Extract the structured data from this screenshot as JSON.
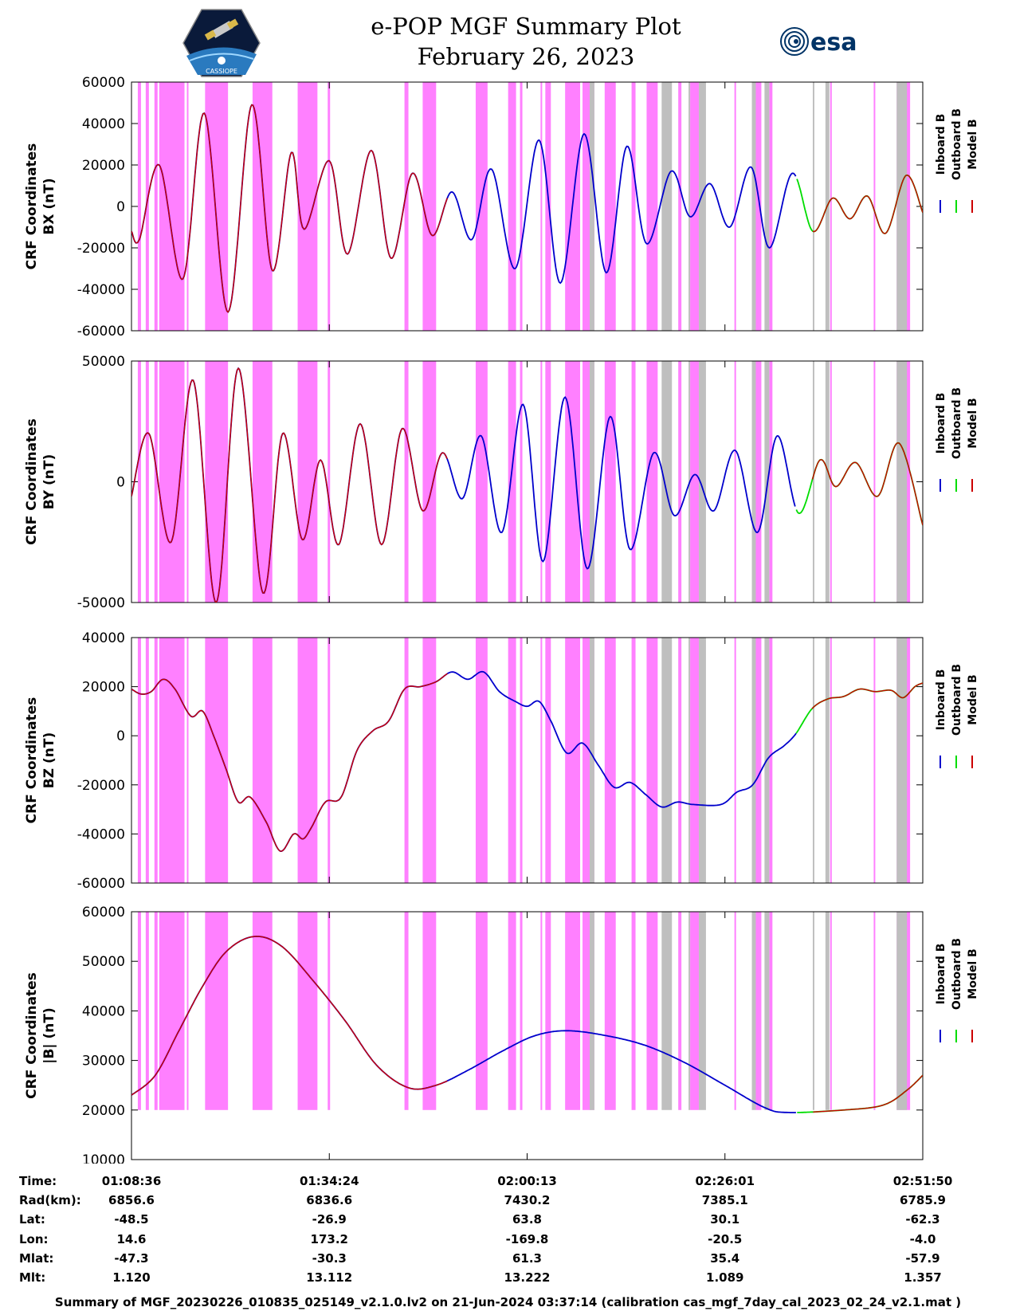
{
  "header": {
    "title_line1": "e-POP MGF Summary Plot",
    "title_line2": "February 26, 2023",
    "left_logo": "cassiope-mission-logo",
    "left_logo_text": "CASSIOPE",
    "right_logo": "esa-logo",
    "right_logo_text": "esa"
  },
  "colors": {
    "inboard": "#0000cc",
    "outboard": "#00dd00",
    "model": "#cc0000",
    "pink_band": "#ff80ff",
    "gray_band": "#bfbfbf"
  },
  "legend": {
    "inboard": "Inboard B",
    "outboard": "Outboard B",
    "model": "Model B"
  },
  "chart_data": {
    "type": "line",
    "x_ticks": [
      "01:08:36",
      "01:34:24",
      "02:00:13",
      "02:26:01",
      "02:51:50"
    ],
    "x_range": [
      0,
      100
    ],
    "inboard_end": 84,
    "model_segments": [
      [
        0,
        40
      ],
      [
        86,
        100
      ]
    ],
    "pink_bands": [
      [
        0.8,
        1.2
      ],
      [
        1.8,
        2.2
      ],
      [
        2.9,
        3.3
      ],
      [
        3.5,
        6.7
      ],
      [
        7.0,
        7.2
      ],
      [
        9.3,
        12.2
      ],
      [
        15.3,
        17.8
      ],
      [
        21.0,
        23.5
      ],
      [
        24.8,
        25.1
      ],
      [
        34.5,
        35.0
      ],
      [
        36.8,
        38.5
      ],
      [
        43.5,
        45.0
      ],
      [
        47.6,
        48.6
      ],
      [
        49.1,
        49.4
      ],
      [
        51.7,
        51.9
      ],
      [
        52.3,
        53.0
      ],
      [
        54.8,
        56.7
      ],
      [
        57.0,
        58.5
      ],
      [
        59.8,
        61.2
      ],
      [
        63.2,
        63.7
      ],
      [
        65.1,
        66.5
      ],
      [
        69.1,
        69.5
      ],
      [
        70.6,
        71.7
      ],
      [
        76.2,
        76.4
      ],
      [
        78.9,
        79.6
      ],
      [
        80.6,
        81.0
      ],
      [
        88.3,
        88.5
      ],
      [
        93.8,
        94.0
      ],
      [
        96.7,
        98.4
      ]
    ],
    "gray_bands": [
      [
        57.9,
        58.5
      ],
      [
        67.0,
        68.3
      ],
      [
        70.4,
        70.6
      ],
      [
        71.7,
        72.6
      ],
      [
        78.4,
        78.9
      ],
      [
        80.0,
        80.6
      ],
      [
        86.1,
        86.3
      ],
      [
        87.7,
        88.2
      ],
      [
        96.7,
        98.0
      ]
    ],
    "panels": [
      {
        "name": "bx",
        "ylabel_line1": "CRF Coordinates",
        "ylabel_line2": "BX (nT)",
        "ylim": [
          -60000,
          60000
        ],
        "yticks": [
          60000,
          40000,
          20000,
          0,
          -20000,
          -40000,
          -60000
        ],
        "points": [
          [
            0,
            -12000
          ],
          [
            1,
            -16000
          ],
          [
            3.5,
            20000
          ],
          [
            6.5,
            -35000
          ],
          [
            9.2,
            45000
          ],
          [
            12.2,
            -51000
          ],
          [
            15.2,
            49000
          ],
          [
            17.8,
            -31000
          ],
          [
            20.2,
            26000
          ],
          [
            21.8,
            -11000
          ],
          [
            25.0,
            22000
          ],
          [
            27.3,
            -23000
          ],
          [
            30.3,
            27000
          ],
          [
            32.8,
            -25000
          ],
          [
            35.5,
            16000
          ],
          [
            38.0,
            -14000
          ],
          [
            40.5,
            7000
          ],
          [
            43.0,
            -16000
          ],
          [
            45.5,
            18000
          ],
          [
            48.5,
            -30000
          ],
          [
            51.5,
            32000
          ],
          [
            54.2,
            -37000
          ],
          [
            57.2,
            35000
          ],
          [
            60.0,
            -32000
          ],
          [
            62.6,
            29000
          ],
          [
            65.1,
            -18000
          ],
          [
            68.2,
            17000
          ],
          [
            70.6,
            -5000
          ],
          [
            73.1,
            11000
          ],
          [
            75.6,
            -10000
          ],
          [
            78.3,
            19000
          ],
          [
            80.6,
            -20000
          ],
          [
            83.5,
            16000
          ],
          [
            86.1,
            -12000
          ],
          [
            88.6,
            4000
          ],
          [
            90.8,
            -6000
          ],
          [
            93.0,
            5000
          ],
          [
            95.3,
            -13000
          ],
          [
            97.9,
            15000
          ],
          [
            100,
            -3000
          ]
        ]
      },
      {
        "name": "by",
        "ylabel_line1": "CRF Coordinates",
        "ylabel_line2": "BY (nT)",
        "ylim": [
          -50000,
          50000
        ],
        "yticks": [
          50000,
          0,
          -50000
        ],
        "points": [
          [
            0,
            -6000
          ],
          [
            2.2,
            20000
          ],
          [
            5.0,
            -25000
          ],
          [
            7.8,
            42000
          ],
          [
            10.7,
            -50000
          ],
          [
            13.5,
            47000
          ],
          [
            16.6,
            -46000
          ],
          [
            19.1,
            20000
          ],
          [
            21.6,
            -24000
          ],
          [
            23.9,
            9000
          ],
          [
            26.2,
            -26000
          ],
          [
            28.9,
            24000
          ],
          [
            31.6,
            -26000
          ],
          [
            34.2,
            22000
          ],
          [
            36.8,
            -12000
          ],
          [
            39.3,
            12000
          ],
          [
            41.8,
            -7000
          ],
          [
            44.2,
            19000
          ],
          [
            46.8,
            -21000
          ],
          [
            49.5,
            32000
          ],
          [
            52.0,
            -33000
          ],
          [
            54.8,
            35000
          ],
          [
            57.6,
            -36000
          ],
          [
            60.5,
            27000
          ],
          [
            63.0,
            -28000
          ],
          [
            66.0,
            12000
          ],
          [
            68.6,
            -14000
          ],
          [
            71.2,
            3000
          ],
          [
            73.6,
            -12000
          ],
          [
            76.3,
            13000
          ],
          [
            79.1,
            -21000
          ],
          [
            81.6,
            19000
          ],
          [
            84.3,
            -13000
          ],
          [
            87.0,
            9000
          ],
          [
            89.0,
            -2000
          ],
          [
            91.5,
            8000
          ],
          [
            94.3,
            -6000
          ],
          [
            97.0,
            16000
          ],
          [
            100,
            -18000
          ]
        ]
      },
      {
        "name": "bz",
        "ylabel_line1": "CRF Coordinates",
        "ylabel_line2": "BZ (nT)",
        "ylim": [
          -60000,
          40000
        ],
        "yticks": [
          40000,
          20000,
          0,
          -20000,
          -40000,
          -60000
        ],
        "points": [
          [
            0,
            19000
          ],
          [
            1.2,
            17000
          ],
          [
            2.5,
            18000
          ],
          [
            4.0,
            23000
          ],
          [
            5.5,
            19000
          ],
          [
            7.5,
            8000
          ],
          [
            9.0,
            10000
          ],
          [
            10.5,
            -1000
          ],
          [
            12.0,
            -14000
          ],
          [
            13.5,
            -27000
          ],
          [
            15.0,
            -25000
          ],
          [
            17.0,
            -35000
          ],
          [
            18.8,
            -47000
          ],
          [
            20.5,
            -40000
          ],
          [
            21.7,
            -42000
          ],
          [
            22.8,
            -37000
          ],
          [
            24.5,
            -27000
          ],
          [
            26.5,
            -25000
          ],
          [
            28.5,
            -6000
          ],
          [
            30.5,
            2000
          ],
          [
            32.5,
            6000
          ],
          [
            34.5,
            19000
          ],
          [
            36.5,
            20000
          ],
          [
            38.5,
            22000
          ],
          [
            40.5,
            26000
          ],
          [
            42.5,
            23000
          ],
          [
            44.5,
            26000
          ],
          [
            46.5,
            18000
          ],
          [
            48.5,
            14000
          ],
          [
            50.0,
            12000
          ],
          [
            51.5,
            14000
          ],
          [
            53.0,
            6000
          ],
          [
            55.0,
            -7000
          ],
          [
            57.0,
            -3000
          ],
          [
            59.0,
            -12000
          ],
          [
            61.0,
            -21000
          ],
          [
            63.0,
            -19000
          ],
          [
            65.0,
            -24000
          ],
          [
            67.0,
            -29000
          ],
          [
            69.0,
            -27000
          ],
          [
            71.0,
            -28000
          ],
          [
            74.5,
            -28000
          ],
          [
            76.5,
            -23000
          ],
          [
            78.5,
            -20000
          ],
          [
            80.5,
            -9000
          ],
          [
            82.5,
            -4000
          ],
          [
            84.0,
            1000
          ],
          [
            86.0,
            11000
          ],
          [
            88.0,
            15000
          ],
          [
            90.0,
            16000
          ],
          [
            92.0,
            19000
          ],
          [
            94.0,
            18000
          ],
          [
            96.0,
            18500
          ],
          [
            97.5,
            15500
          ],
          [
            99.0,
            20000
          ],
          [
            100,
            21500
          ]
        ]
      },
      {
        "name": "btotal",
        "ylabel_line1": "CRF Coordinates",
        "ylabel_line2": "|B| (nT)",
        "ylim": [
          10000,
          60000
        ],
        "yticks": [
          60000,
          50000,
          40000,
          30000,
          20000,
          10000
        ],
        "points": [
          [
            0,
            23000
          ],
          [
            3.0,
            27000
          ],
          [
            6.0,
            36000
          ],
          [
            9.0,
            45000
          ],
          [
            12.0,
            52000
          ],
          [
            15.5,
            55000
          ],
          [
            19.0,
            53000
          ],
          [
            23.0,
            46000
          ],
          [
            27.0,
            38000
          ],
          [
            31.0,
            29000
          ],
          [
            35.0,
            24500
          ],
          [
            38.5,
            25000
          ],
          [
            42.5,
            28000
          ],
          [
            47.0,
            32000
          ],
          [
            51.0,
            35000
          ],
          [
            55.0,
            36000
          ],
          [
            60.0,
            35000
          ],
          [
            65.0,
            33000
          ],
          [
            70.0,
            29500
          ],
          [
            75.0,
            25000
          ],
          [
            80.0,
            20500
          ],
          [
            83.0,
            19500
          ],
          [
            90.0,
            20000
          ],
          [
            95.0,
            21000
          ],
          [
            98.0,
            24000
          ],
          [
            100,
            27000
          ]
        ]
      }
    ]
  },
  "ephemeris": {
    "labels": [
      "Time:",
      "Rad(km):",
      "Lat:",
      "Lon:",
      "Mlat:",
      "Mlt:"
    ],
    "columns": [
      [
        "01:08:36",
        "6856.6",
        "-48.5",
        "14.6",
        "-47.3",
        "1.120"
      ],
      [
        "01:34:24",
        "6836.6",
        "-26.9",
        "173.2",
        "-30.3",
        "13.112"
      ],
      [
        "02:00:13",
        "7430.2",
        "63.8",
        "-169.8",
        "61.3",
        "13.222"
      ],
      [
        "02:26:01",
        "7385.1",
        "30.1",
        "-20.5",
        "35.4",
        "1.089"
      ],
      [
        "02:51:50",
        "6785.9",
        "-62.3",
        "-4.0",
        "-57.9",
        "1.357"
      ]
    ]
  },
  "footer": {
    "text": "Summary of MGF_20230226_010835_025149_v2.1.0.lv2 on 21-Jun-2024 03:37:14 (calibration cas_mgf_7day_cal_2023_02_24_v2.1.mat )"
  }
}
